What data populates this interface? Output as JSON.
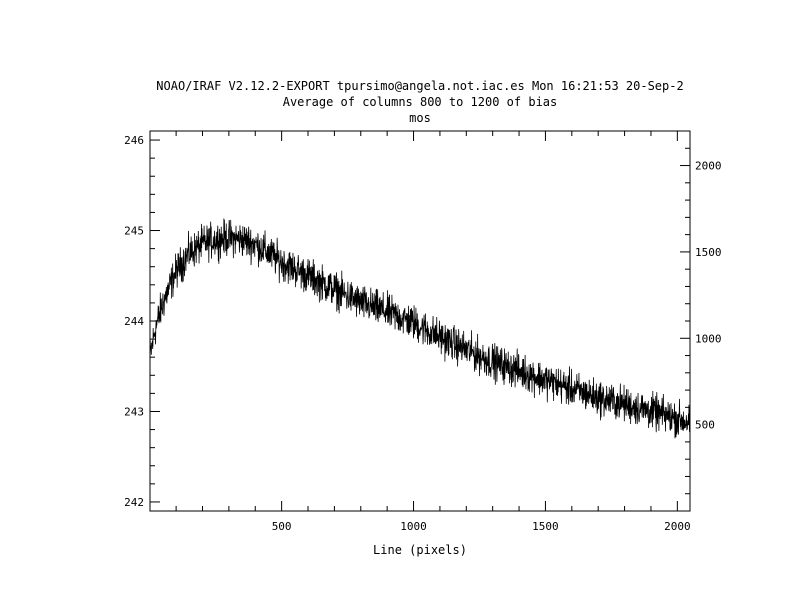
{
  "header": {
    "line1": "NOAO/IRAF V2.12.2-EXPORT tpursimo@angela.not.iac.es Mon 16:21:53 20-Sep-2",
    "line2": "Average of columns 800 to 1200 of bias",
    "line3": "mos"
  },
  "chart_data": {
    "type": "line",
    "title": "Average of columns 800 to 1200 of bias",
    "xlabel": "Line (pixels)",
    "ylabel": "",
    "xlim": [
      1,
      2048
    ],
    "ylim": [
      241.9,
      246.1
    ],
    "y2lim": [
      0,
      2200
    ],
    "grid": false,
    "xticks": [
      500,
      1000,
      1500,
      2000
    ],
    "xtick_labels": [
      "500",
      "1000",
      "1500",
      "2000"
    ],
    "yticks": [
      242,
      243,
      244,
      245,
      246
    ],
    "ytick_labels": [
      "242",
      "243",
      "244",
      "245",
      "246"
    ],
    "y2ticks": [
      500,
      1000,
      1500,
      2000
    ],
    "y2tick_labels": [
      "500",
      "1000",
      "1500",
      "2000"
    ],
    "series": [
      {
        "color": "#000000",
        "trend_points": [
          [
            1,
            243.6
          ],
          [
            20,
            243.9
          ],
          [
            50,
            244.2
          ],
          [
            100,
            244.55
          ],
          [
            150,
            244.75
          ],
          [
            200,
            244.85
          ],
          [
            250,
            244.9
          ],
          [
            300,
            244.92
          ],
          [
            350,
            244.9
          ],
          [
            400,
            244.85
          ],
          [
            450,
            244.75
          ],
          [
            500,
            244.65
          ],
          [
            600,
            244.5
          ],
          [
            700,
            244.35
          ],
          [
            800,
            244.2
          ],
          [
            900,
            244.1
          ],
          [
            1000,
            243.98
          ],
          [
            1100,
            243.82
          ],
          [
            1200,
            243.68
          ],
          [
            1300,
            243.55
          ],
          [
            1400,
            243.45
          ],
          [
            1500,
            243.35
          ],
          [
            1600,
            243.25
          ],
          [
            1700,
            243.15
          ],
          [
            1800,
            243.08
          ],
          [
            1900,
            243.0
          ],
          [
            2000,
            242.92
          ],
          [
            2048,
            242.88
          ]
        ],
        "noise_amplitude": 0.12
      }
    ]
  }
}
